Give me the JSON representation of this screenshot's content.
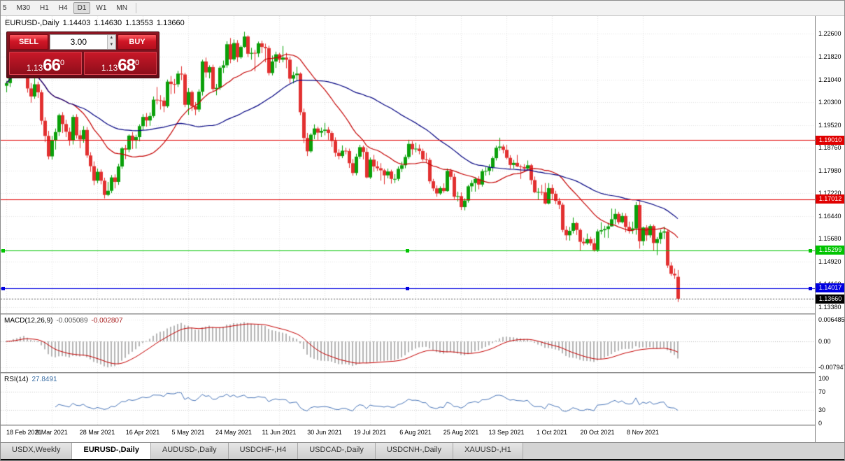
{
  "toolbar": {
    "timeframes": [
      {
        "label": "5",
        "active": false
      },
      {
        "label": "M30",
        "active": false
      },
      {
        "label": "H1",
        "active": false
      },
      {
        "label": "H4",
        "active": false
      },
      {
        "label": "D1",
        "active": true
      },
      {
        "label": "W1",
        "active": false
      },
      {
        "label": "MN",
        "active": false
      }
    ]
  },
  "chart_header": {
    "symbol": "EURUSD-,Daily",
    "open": "1.14403",
    "high": "1.14630",
    "low": "1.13553",
    "close": "1.13660"
  },
  "trade_panel": {
    "sell_label": "SELL",
    "buy_label": "BUY",
    "volume": "3.00",
    "bid": {
      "prefix": "1.13",
      "big": "66",
      "sup": "0"
    },
    "ask": {
      "prefix": "1.13",
      "big": "68",
      "sup": "0"
    }
  },
  "chart_data": {
    "type": "candlestick",
    "symbol": "EURUSD",
    "timeframe": "Daily",
    "price_axis_labels": [
      "1.22600",
      "1.21820",
      "1.21040",
      "1.20300",
      "1.19520",
      "1.18760",
      "1.17980",
      "1.17220",
      "1.16440",
      "1.15680",
      "1.14920",
      "1.14160",
      "1.13380"
    ],
    "date_labels": [
      "18 Feb 2021",
      "9 Mar 2021",
      "28 Mar 2021",
      "16 Apr 2021",
      "5 May 2021",
      "24 May 2021",
      "11 Jun 2021",
      "30 Jun 2021",
      "19 Jul 2021",
      "6 Aug 2021",
      "25 Aug 2021",
      "13 Sep 2021",
      "1 Oct 2021",
      "20 Oct 2021",
      "8 Nov 2021"
    ],
    "levels": [
      {
        "price": 1.1901,
        "label": "1.19010",
        "color": "#e00000",
        "handles": false
      },
      {
        "price": 1.17012,
        "label": "1.17012",
        "color": "#e00000",
        "handles": false
      },
      {
        "price": 1.15299,
        "label": "1.15299",
        "color": "#00c400",
        "handles": true
      },
      {
        "price": 1.14017,
        "label": "1.14017",
        "color": "#0000e0",
        "handles": true
      }
    ],
    "current_price": {
      "price": 1.1366,
      "label": "1.13660",
      "color": "#000000"
    },
    "ma_fast_period": 20,
    "ma_slow_period": 50,
    "colors": {
      "bull": "#0aa00a",
      "bear": "#e23030",
      "ma_fast": "#c40000",
      "ma_slow": "#000080",
      "grid": "#e2e2e2",
      "histogram": "#b5b5b5",
      "macd_signal": "#c40000",
      "rsi": "#4a76b8",
      "sub_level": "#c8c8c8"
    },
    "candles": [
      [
        1.2084,
        1.2101,
        1.2062,
        1.2093
      ],
      [
        1.2093,
        1.2124,
        1.208,
        1.2118
      ],
      [
        1.2118,
        1.2169,
        1.2112,
        1.2158
      ],
      [
        1.2158,
        1.2172,
        1.2135,
        1.215
      ],
      [
        1.215,
        1.2176,
        1.2143,
        1.2168
      ],
      [
        1.2168,
        1.2205,
        1.2155,
        1.2175
      ],
      [
        1.2175,
        1.2184,
        1.2061,
        1.2075
      ],
      [
        1.2075,
        1.2093,
        1.2027,
        1.2048
      ],
      [
        1.2048,
        1.2113,
        1.204,
        1.2089
      ],
      [
        1.2089,
        1.2098,
        1.2043,
        1.2062
      ],
      [
        1.2062,
        1.207,
        1.1953,
        1.1966
      ],
      [
        1.1966,
        1.1978,
        1.1894,
        1.1915
      ],
      [
        1.1915,
        1.1932,
        1.1836,
        1.1846
      ],
      [
        1.1846,
        1.1915,
        1.1835,
        1.1899
      ],
      [
        1.1899,
        1.194,
        1.1869,
        1.1928
      ],
      [
        1.1928,
        1.199,
        1.1915,
        1.1985
      ],
      [
        1.1985,
        1.1995,
        1.1925,
        1.1955
      ],
      [
        1.1955,
        1.1969,
        1.1911,
        1.1929
      ],
      [
        1.1929,
        1.1943,
        1.1882,
        1.1899
      ],
      [
        1.1899,
        1.1986,
        1.1886,
        1.1979
      ],
      [
        1.1979,
        1.1988,
        1.1906,
        1.1917
      ],
      [
        1.1917,
        1.1934,
        1.1874,
        1.1903
      ],
      [
        1.1903,
        1.1948,
        1.1892,
        1.1935
      ],
      [
        1.1935,
        1.1945,
        1.1841,
        1.1849
      ],
      [
        1.1849,
        1.186,
        1.1794,
        1.1813
      ],
      [
        1.1813,
        1.1829,
        1.1749,
        1.1764
      ],
      [
        1.1764,
        1.1805,
        1.1755,
        1.1794
      ],
      [
        1.1794,
        1.1802,
        1.1752,
        1.1764
      ],
      [
        1.1764,
        1.1774,
        1.1704,
        1.1716
      ],
      [
        1.1716,
        1.176,
        1.1712,
        1.173
      ],
      [
        1.173,
        1.1783,
        1.1722,
        1.1775
      ],
      [
        1.1775,
        1.1785,
        1.1738,
        1.176
      ],
      [
        1.176,
        1.1821,
        1.175,
        1.1812
      ],
      [
        1.1812,
        1.1878,
        1.1804,
        1.1873
      ],
      [
        1.1873,
        1.1885,
        1.1837,
        1.1869
      ],
      [
        1.1869,
        1.192,
        1.186,
        1.1916
      ],
      [
        1.1916,
        1.1928,
        1.1871,
        1.1899
      ],
      [
        1.1899,
        1.1919,
        1.1872,
        1.1911
      ],
      [
        1.1911,
        1.1954,
        1.1897,
        1.1948
      ],
      [
        1.1948,
        1.1988,
        1.1935,
        1.1979
      ],
      [
        1.1979,
        1.1992,
        1.1946,
        1.1967
      ],
      [
        1.1967,
        1.1994,
        1.1949,
        1.1982
      ],
      [
        1.1982,
        1.2048,
        1.1976,
        1.2037
      ],
      [
        1.2037,
        1.208,
        1.2021,
        1.2035
      ],
      [
        1.2035,
        1.2052,
        1.2004,
        1.2034
      ],
      [
        1.2034,
        1.2045,
        1.1995,
        1.2015
      ],
      [
        1.2015,
        1.2105,
        1.201,
        1.2098
      ],
      [
        1.2098,
        1.2117,
        1.2056,
        1.209
      ],
      [
        1.209,
        1.2107,
        1.2058,
        1.2089
      ],
      [
        1.2089,
        1.2134,
        1.208,
        1.2125
      ],
      [
        1.2125,
        1.215,
        1.2103,
        1.2122
      ],
      [
        1.2122,
        1.2128,
        1.2012,
        1.202
      ],
      [
        1.202,
        1.2076,
        1.1986,
        1.2063
      ],
      [
        1.2063,
        1.2068,
        1.1999,
        1.2015
      ],
      [
        1.2015,
        1.2029,
        1.1985,
        1.2004
      ],
      [
        1.2004,
        1.2072,
        1.1996,
        1.2064
      ],
      [
        1.2064,
        1.2172,
        1.2051,
        1.2166
      ],
      [
        1.2166,
        1.2179,
        1.2112,
        1.2129
      ],
      [
        1.2129,
        1.2153,
        1.2109,
        1.2147
      ],
      [
        1.2147,
        1.2155,
        1.2064,
        1.2073
      ],
      [
        1.2073,
        1.209,
        1.2052,
        1.2077
      ],
      [
        1.2077,
        1.2151,
        1.207,
        1.2145
      ],
      [
        1.2145,
        1.2169,
        1.2127,
        1.2153
      ],
      [
        1.2153,
        1.2234,
        1.2145,
        1.2224
      ],
      [
        1.2224,
        1.2245,
        1.216,
        1.2173
      ],
      [
        1.2173,
        1.224,
        1.2168,
        1.2228
      ],
      [
        1.2228,
        1.2238,
        1.2164,
        1.218
      ],
      [
        1.218,
        1.222,
        1.2175,
        1.2215
      ],
      [
        1.2215,
        1.2266,
        1.2212,
        1.225
      ],
      [
        1.225,
        1.2254,
        1.2181,
        1.2192
      ],
      [
        1.2192,
        1.2212,
        1.2172,
        1.2195
      ],
      [
        1.2195,
        1.2205,
        1.2133,
        1.2193
      ],
      [
        1.2193,
        1.2233,
        1.2181,
        1.2227
      ],
      [
        1.2227,
        1.2236,
        1.2194,
        1.2215
      ],
      [
        1.2215,
        1.2226,
        1.2163,
        1.2211
      ],
      [
        1.2211,
        1.2219,
        1.2119,
        1.2127
      ],
      [
        1.2127,
        1.2186,
        1.2119,
        1.2166
      ],
      [
        1.2166,
        1.2199,
        1.2144,
        1.219
      ],
      [
        1.219,
        1.2195,
        1.2161,
        1.2172
      ],
      [
        1.2172,
        1.2218,
        1.2163,
        1.2179
      ],
      [
        1.2179,
        1.2195,
        1.2143,
        1.2172
      ],
      [
        1.2172,
        1.2182,
        1.2093,
        1.2108
      ],
      [
        1.2108,
        1.2131,
        1.2092,
        1.212
      ],
      [
        1.212,
        1.2148,
        1.2101,
        1.2125
      ],
      [
        1.2125,
        1.2129,
        1.1985,
        1.1995
      ],
      [
        1.1995,
        1.2007,
        1.1891,
        1.1908
      ],
      [
        1.1908,
        1.1925,
        1.1847,
        1.1863
      ],
      [
        1.1863,
        1.1924,
        1.1858,
        1.1919
      ],
      [
        1.1919,
        1.1954,
        1.1904,
        1.194
      ],
      [
        1.194,
        1.1946,
        1.1902,
        1.1926
      ],
      [
        1.1926,
        1.1943,
        1.1911,
        1.1932
      ],
      [
        1.1932,
        1.1959,
        1.1917,
        1.1936
      ],
      [
        1.1936,
        1.1945,
        1.1902,
        1.1925
      ],
      [
        1.1925,
        1.1932,
        1.1878,
        1.1898
      ],
      [
        1.1898,
        1.191,
        1.1845,
        1.1858
      ],
      [
        1.1858,
        1.187,
        1.1836,
        1.1847
      ],
      [
        1.1847,
        1.1883,
        1.184,
        1.1865
      ],
      [
        1.1865,
        1.1875,
        1.1853,
        1.1864
      ],
      [
        1.1864,
        1.1872,
        1.1807,
        1.1823
      ],
      [
        1.1823,
        1.1837,
        1.1781,
        1.179
      ],
      [
        1.179,
        1.1855,
        1.1782,
        1.1845
      ],
      [
        1.1845,
        1.1885,
        1.1838,
        1.1877
      ],
      [
        1.1877,
        1.1882,
        1.1836,
        1.1861
      ],
      [
        1.1861,
        1.1875,
        1.1772,
        1.1775
      ],
      [
        1.1775,
        1.1842,
        1.177,
        1.1835
      ],
      [
        1.1835,
        1.1851,
        1.1794,
        1.1812
      ],
      [
        1.1812,
        1.183,
        1.1797,
        1.1806
      ],
      [
        1.1806,
        1.1823,
        1.1764,
        1.1799
      ],
      [
        1.1799,
        1.1804,
        1.1752,
        1.1782
      ],
      [
        1.1782,
        1.1805,
        1.1772,
        1.1795
      ],
      [
        1.1795,
        1.1801,
        1.1754,
        1.177
      ],
      [
        1.177,
        1.1786,
        1.1756,
        1.177
      ],
      [
        1.177,
        1.1812,
        1.1763,
        1.1804
      ],
      [
        1.1804,
        1.1828,
        1.1793,
        1.1816
      ],
      [
        1.1816,
        1.1852,
        1.1806,
        1.1844
      ],
      [
        1.1844,
        1.1902,
        1.1837,
        1.1888
      ],
      [
        1.1888,
        1.1897,
        1.1851,
        1.187
      ],
      [
        1.187,
        1.1892,
        1.186,
        1.1872
      ],
      [
        1.1872,
        1.1886,
        1.1853,
        1.1864
      ],
      [
        1.1864,
        1.1872,
        1.183,
        1.1836
      ],
      [
        1.1836,
        1.1858,
        1.1825,
        1.1834
      ],
      [
        1.1834,
        1.1841,
        1.1754,
        1.1762
      ],
      [
        1.1762,
        1.177,
        1.1729,
        1.1738
      ],
      [
        1.1738,
        1.1748,
        1.171,
        1.1721
      ],
      [
        1.1721,
        1.1745,
        1.1716,
        1.1739
      ],
      [
        1.1739,
        1.1755,
        1.1723,
        1.1729
      ],
      [
        1.1729,
        1.1805,
        1.1727,
        1.1797
      ],
      [
        1.1797,
        1.1804,
        1.1767,
        1.1777
      ],
      [
        1.1777,
        1.1788,
        1.1702,
        1.171
      ],
      [
        1.171,
        1.1727,
        1.1694,
        1.1712
      ],
      [
        1.1712,
        1.1725,
        1.1665,
        1.1675
      ],
      [
        1.1675,
        1.1705,
        1.1664,
        1.1697
      ],
      [
        1.1697,
        1.175,
        1.169,
        1.1745
      ],
      [
        1.1745,
        1.1766,
        1.1727,
        1.1756
      ],
      [
        1.1756,
        1.1775,
        1.1727,
        1.177
      ],
      [
        1.177,
        1.1779,
        1.1735,
        1.1751
      ],
      [
        1.1751,
        1.1803,
        1.1744,
        1.1796
      ],
      [
        1.1796,
        1.181,
        1.1781,
        1.1797
      ],
      [
        1.1797,
        1.1819,
        1.1783,
        1.1809
      ],
      [
        1.1809,
        1.1846,
        1.1795,
        1.184
      ],
      [
        1.184,
        1.1882,
        1.1832,
        1.1875
      ],
      [
        1.1875,
        1.1909,
        1.1865,
        1.1879
      ],
      [
        1.1879,
        1.1886,
        1.1856,
        1.1868
      ],
      [
        1.1868,
        1.1885,
        1.1836,
        1.1841
      ],
      [
        1.1841,
        1.185,
        1.1804,
        1.1817
      ],
      [
        1.1817,
        1.1834,
        1.1805,
        1.1824
      ],
      [
        1.1824,
        1.1851,
        1.181,
        1.1812
      ],
      [
        1.1812,
        1.1818,
        1.177,
        1.181
      ],
      [
        1.181,
        1.182,
        1.1793,
        1.1805
      ],
      [
        1.1805,
        1.1832,
        1.18,
        1.1816
      ],
      [
        1.1816,
        1.1821,
        1.1751,
        1.1766
      ],
      [
        1.1766,
        1.1778,
        1.1722,
        1.1725
      ],
      [
        1.1725,
        1.1739,
        1.1701,
        1.1726
      ],
      [
        1.1726,
        1.175,
        1.1715,
        1.1725
      ],
      [
        1.1725,
        1.1756,
        1.1684,
        1.1687
      ],
      [
        1.1687,
        1.1756,
        1.1684,
        1.1739
      ],
      [
        1.1739,
        1.1751,
        1.1701,
        1.172
      ],
      [
        1.172,
        1.173,
        1.1685,
        1.1696
      ],
      [
        1.1696,
        1.1706,
        1.1668,
        1.1683
      ],
      [
        1.1683,
        1.169,
        1.159,
        1.1598
      ],
      [
        1.1598,
        1.1611,
        1.1563,
        1.158
      ],
      [
        1.158,
        1.1608,
        1.1562,
        1.1595
      ],
      [
        1.1595,
        1.164,
        1.1586,
        1.1621
      ],
      [
        1.1621,
        1.1625,
        1.1581,
        1.1598
      ],
      [
        1.1598,
        1.1603,
        1.1529,
        1.1558
      ],
      [
        1.1558,
        1.1572,
        1.1546,
        1.1553
      ],
      [
        1.1553,
        1.1586,
        1.1548,
        1.1567
      ],
      [
        1.1567,
        1.1575,
        1.1545,
        1.1553
      ],
      [
        1.1553,
        1.157,
        1.1525,
        1.153
      ],
      [
        1.153,
        1.16,
        1.1524,
        1.1593
      ],
      [
        1.1593,
        1.1624,
        1.1583,
        1.1597
      ],
      [
        1.1597,
        1.1612,
        1.1572,
        1.1601
      ],
      [
        1.1601,
        1.1622,
        1.1571,
        1.161
      ],
      [
        1.161,
        1.167,
        1.1609,
        1.1634
      ],
      [
        1.1634,
        1.1669,
        1.1617,
        1.1652
      ],
      [
        1.1652,
        1.1659,
        1.1617,
        1.1624
      ],
      [
        1.1624,
        1.1656,
        1.162,
        1.1645
      ],
      [
        1.1645,
        1.1654,
        1.159,
        1.1608
      ],
      [
        1.1608,
        1.1626,
        1.1586,
        1.1597
      ],
      [
        1.1597,
        1.1626,
        1.1585,
        1.1603
      ],
      [
        1.1603,
        1.1692,
        1.1582,
        1.1682
      ],
      [
        1.1682,
        1.1695,
        1.1535,
        1.156
      ],
      [
        1.156,
        1.1609,
        1.1545,
        1.1606
      ],
      [
        1.1606,
        1.1614,
        1.1561,
        1.158
      ],
      [
        1.158,
        1.1617,
        1.1572,
        1.1611
      ],
      [
        1.1611,
        1.1616,
        1.1527,
        1.1554
      ],
      [
        1.1554,
        1.1574,
        1.1513,
        1.1567
      ],
      [
        1.1567,
        1.1599,
        1.1551,
        1.1589
      ],
      [
        1.1589,
        1.1609,
        1.1567,
        1.1593
      ],
      [
        1.1593,
        1.1599,
        1.147,
        1.1478
      ],
      [
        1.1478,
        1.1489,
        1.1443,
        1.145
      ],
      [
        1.145,
        1.1468,
        1.1433,
        1.1445
      ],
      [
        1.144,
        1.1463,
        1.1355,
        1.1366
      ]
    ]
  },
  "macd_panel": {
    "name": "MACD(12,26,9)",
    "main_value": "-0.005089",
    "signal_value": "-0.002807",
    "axis": [
      "0.006485",
      "0.00",
      "-0.007947"
    ],
    "params": {
      "fast": 12,
      "slow": 26,
      "signal": 9
    }
  },
  "rsi_panel": {
    "name": "RSI(14)",
    "value": "27.8491",
    "axis": [
      "100",
      "70",
      "30",
      "0"
    ],
    "period": 14,
    "levels": [
      70,
      30
    ]
  },
  "tabs": [
    {
      "label": "USDX,Weekly",
      "active": false
    },
    {
      "label": "EURUSD-,Daily",
      "active": true
    },
    {
      "label": "AUDUSD-,Daily",
      "active": false
    },
    {
      "label": "USDCHF-,H4",
      "active": false
    },
    {
      "label": "USDCAD-,Daily",
      "active": false
    },
    {
      "label": "USDCNH-,Daily",
      "active": false
    },
    {
      "label": "XAUUSD-,H1",
      "active": false
    }
  ]
}
